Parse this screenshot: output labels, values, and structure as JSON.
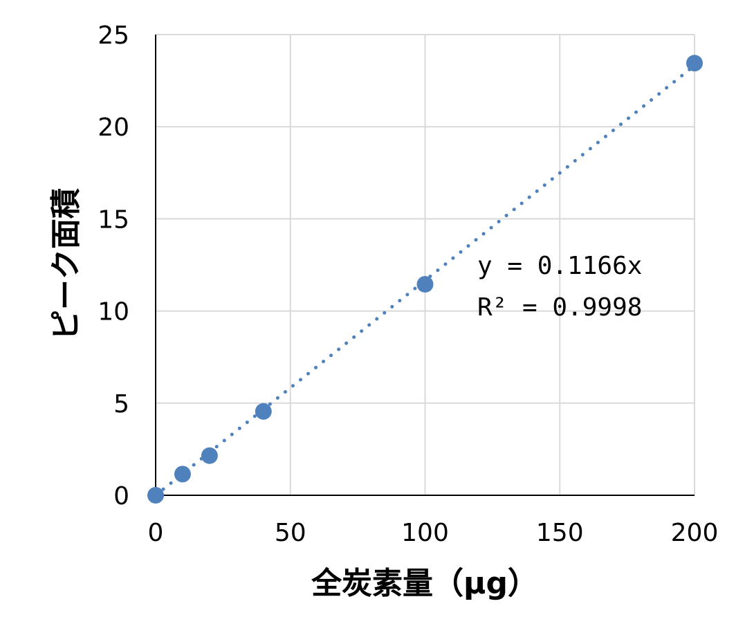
{
  "chart_data": {
    "type": "scatter",
    "xlabel": "全炭素量（μg）",
    "ylabel": "ピーク面積",
    "xlim": [
      0,
      200
    ],
    "ylim": [
      0,
      25
    ],
    "xticks": [
      0,
      50,
      100,
      150,
      200
    ],
    "yticks": [
      0,
      5,
      10,
      15,
      20,
      25
    ],
    "grid": true,
    "series": [
      {
        "x": [
          0,
          10,
          20,
          40,
          100,
          200
        ],
        "y": [
          0,
          1.15,
          2.15,
          4.55,
          11.45,
          23.45
        ],
        "color": "#4f81bd"
      }
    ],
    "trendline": {
      "type": "linear",
      "slope": 0.1166,
      "style": "dotted",
      "color": "#4f81bd"
    },
    "annotations": {
      "equation": "y = 0.1166x",
      "r_squared": "R² = 0.9998"
    }
  }
}
